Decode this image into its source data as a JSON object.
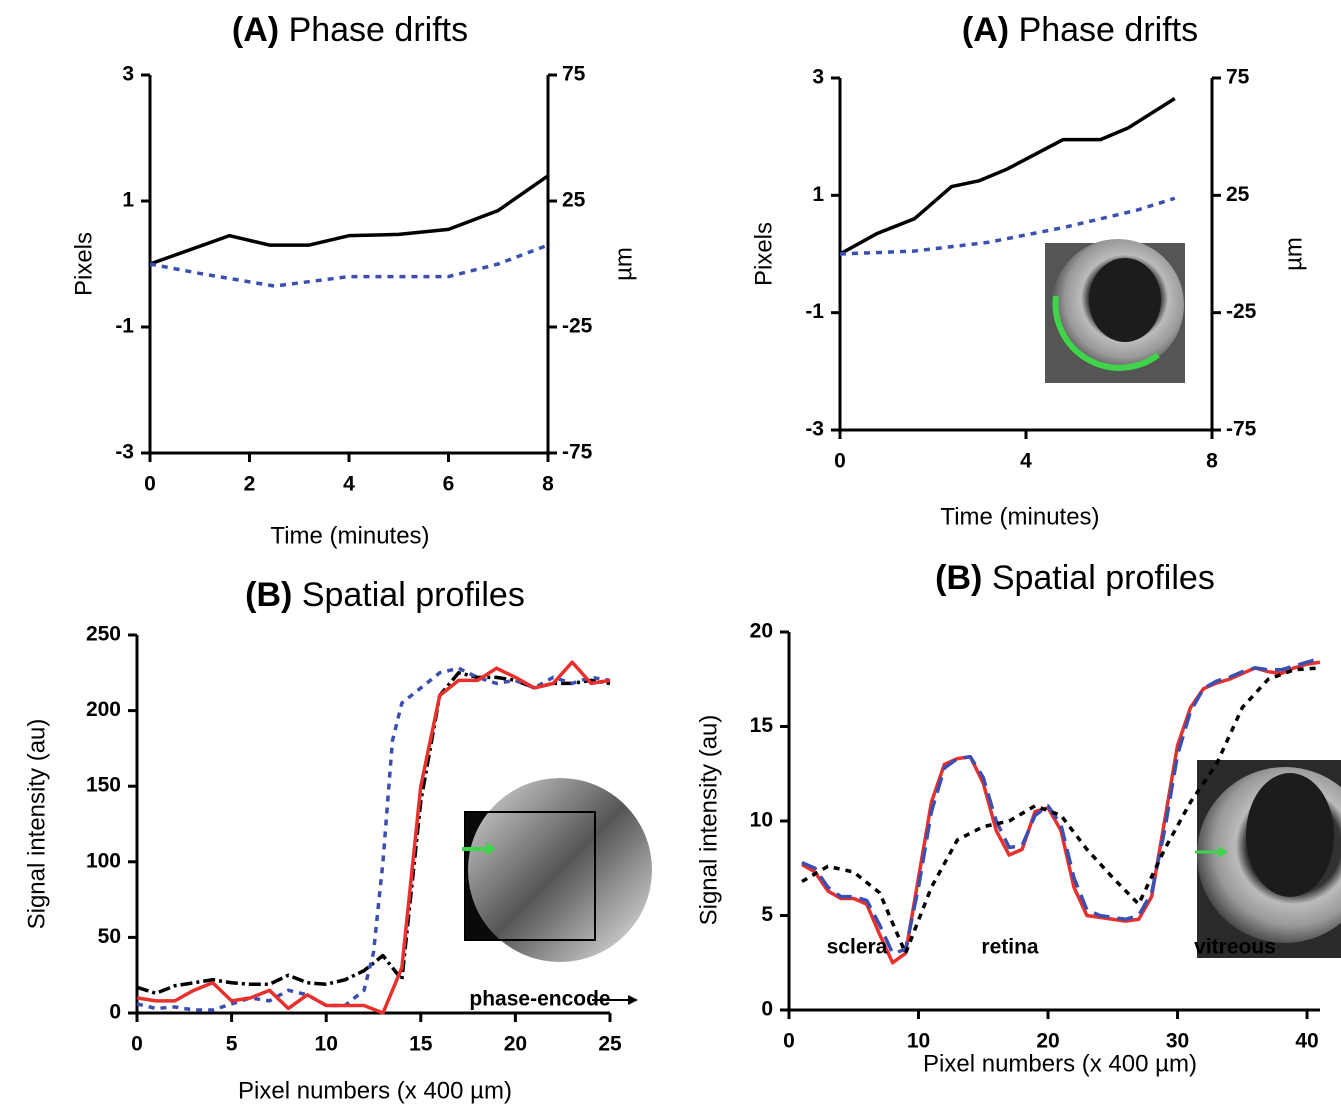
{
  "chart_data": [
    {
      "type": "line",
      "panel": "(A)",
      "title": "Phase drifts",
      "x_label": "Time (minutes)",
      "y_label": "Pixels",
      "y2_label": "µm",
      "xlim": [
        0,
        8
      ],
      "xticks": [
        0,
        2,
        4,
        6,
        8
      ],
      "ylim": [
        -3,
        3
      ],
      "yticks": [
        -3,
        -1,
        1,
        3
      ],
      "y2lim": [
        -75,
        75
      ],
      "y2ticks": [
        -75,
        -25,
        25,
        75
      ],
      "series": [
        {
          "color": "#000000",
          "style": "solid",
          "x": [
            0,
            1.6,
            2.4,
            3.2,
            4,
            5,
            6,
            7,
            8
          ],
          "values": [
            0,
            0.45,
            0.3,
            0.3,
            0.45,
            0.47,
            0.55,
            0.85,
            1.4
          ]
        },
        {
          "color": "#3a4fb0",
          "style": "dotted",
          "x": [
            0,
            1,
            2.5,
            4,
            6,
            7,
            8
          ],
          "values": [
            0,
            -0.15,
            -0.35,
            -0.2,
            -0.2,
            0,
            0.3
          ]
        }
      ]
    },
    {
      "type": "line",
      "panel": "(A)",
      "title": "Phase drifts",
      "x_label": "Time (minutes)",
      "y_label": "Pixels",
      "y2_label": "µm",
      "xlim": [
        0,
        8
      ],
      "xticks": [
        0,
        4,
        8
      ],
      "ylim": [
        -3,
        3
      ],
      "yticks": [
        -3,
        -1,
        1,
        3
      ],
      "y2lim": [
        -75,
        75
      ],
      "y2ticks": [
        -75,
        -25,
        25,
        75
      ],
      "series": [
        {
          "color": "#000000",
          "style": "solid",
          "x": [
            0,
            0.8,
            1.6,
            2.4,
            3,
            3.6,
            4.8,
            5.6,
            6.2,
            7.2
          ],
          "values": [
            0,
            0.35,
            0.6,
            1.15,
            1.25,
            1.45,
            1.95,
            1.95,
            2.15,
            2.65
          ]
        },
        {
          "color": "#3a4fb0",
          "style": "dotted",
          "x": [
            0,
            1.6,
            3.2,
            4.8,
            6.4,
            7.2
          ],
          "values": [
            0,
            0.05,
            0.2,
            0.45,
            0.75,
            0.95
          ]
        }
      ]
    },
    {
      "type": "line",
      "panel": "(B)",
      "title": "Spatial profiles",
      "x_label": "Pixel numbers (x 400 µm)",
      "y_label": "Signal intensity (au)",
      "xlim": [
        0,
        25
      ],
      "xticks": [
        0,
        5,
        10,
        15,
        20,
        25
      ],
      "ylim": [
        0,
        250
      ],
      "yticks": [
        0,
        50,
        100,
        150,
        200,
        250
      ],
      "annotations": [
        "phase-encode"
      ],
      "series": [
        {
          "color": "#000000",
          "style": "dashdot",
          "x": [
            0,
            1,
            2,
            3,
            4,
            5,
            6,
            7,
            8,
            9,
            10,
            11,
            12,
            13,
            14,
            15,
            16,
            17,
            18,
            19,
            20,
            21,
            22,
            23,
            24,
            25
          ],
          "values": [
            17,
            13,
            18,
            20,
            22,
            20,
            19,
            19,
            25,
            20,
            19,
            22,
            28,
            38,
            22,
            140,
            210,
            225,
            222,
            222,
            220,
            215,
            218,
            218,
            220,
            218
          ]
        },
        {
          "color": "#3a4fb0",
          "style": "dotted",
          "x": [
            0,
            1,
            2,
            3,
            4,
            5,
            6,
            7,
            8,
            9,
            10,
            11,
            12,
            12.5,
            13,
            13.5,
            14,
            15,
            16,
            17,
            18,
            19,
            20,
            21,
            22,
            23,
            24,
            25
          ],
          "values": [
            6,
            3,
            4,
            2,
            2,
            6,
            10,
            8,
            15,
            12,
            5,
            5,
            15,
            40,
            100,
            180,
            205,
            215,
            225,
            228,
            222,
            218,
            220,
            215,
            222,
            218,
            222,
            220
          ]
        },
        {
          "color": "#e8302c",
          "style": "solid",
          "x": [
            0,
            1,
            2,
            3,
            4,
            5,
            6,
            7,
            8,
            9,
            10,
            11,
            12,
            13,
            14,
            15,
            16,
            17,
            18,
            19,
            20,
            21,
            22,
            23,
            24,
            25
          ],
          "values": [
            10,
            8,
            8,
            15,
            20,
            8,
            10,
            15,
            3,
            12,
            5,
            5,
            5,
            0,
            30,
            150,
            210,
            220,
            220,
            228,
            222,
            215,
            218,
            232,
            218,
            220
          ]
        }
      ]
    },
    {
      "type": "line",
      "panel": "(B)",
      "title": "Spatial profiles",
      "x_label": "Pixel numbers (x 400 µm)",
      "y_label": "Signal intensity (au)",
      "xlim": [
        0,
        41
      ],
      "xticks": [
        0,
        10,
        20,
        30,
        40
      ],
      "ylim": [
        0,
        20
      ],
      "yticks": [
        0,
        5,
        10,
        15,
        20
      ],
      "annotations": [
        "sclera",
        "retina",
        "vitreous"
      ],
      "series": [
        {
          "color": "#e8302c",
          "style": "solid",
          "x": [
            1,
            2,
            3,
            4,
            5,
            6,
            7,
            8,
            9,
            10,
            11,
            12,
            13,
            14,
            15,
            16,
            17,
            18,
            19,
            20,
            21,
            22,
            23,
            24,
            25,
            26,
            27,
            28,
            29,
            30,
            31,
            32,
            33,
            34,
            35,
            36,
            37,
            38,
            39,
            40,
            41
          ],
          "values": [
            7.7,
            7.3,
            6.3,
            5.9,
            5.9,
            5.6,
            4,
            2.5,
            3,
            7,
            11,
            13,
            13.3,
            13.4,
            12,
            9.5,
            8.2,
            8.5,
            10.5,
            10.7,
            9.5,
            6.5,
            5,
            4.9,
            4.8,
            4.7,
            4.8,
            6,
            10,
            14,
            16,
            17,
            17.3,
            17.5,
            17.8,
            18.1,
            17.9,
            17.8,
            18.1,
            18.3,
            18.4
          ]
        },
        {
          "color": "#3a4fb0",
          "style": "dashed",
          "x": [
            1,
            2,
            3,
            4,
            5,
            6,
            7,
            8,
            9,
            10,
            11,
            12,
            13,
            14,
            15,
            16,
            17,
            18,
            19,
            20,
            21,
            22,
            23,
            24,
            25,
            26,
            27,
            28,
            29,
            30,
            31,
            32,
            33,
            34,
            35,
            36,
            37,
            38,
            39,
            40,
            41
          ],
          "values": [
            7.8,
            7.5,
            6.5,
            6,
            6,
            5.8,
            4.5,
            3,
            3.2,
            6.5,
            10.5,
            12.8,
            13.3,
            13.4,
            12.3,
            10,
            8.6,
            8.7,
            10.3,
            10.8,
            9.8,
            7,
            5.3,
            5,
            4.9,
            4.8,
            5,
            6.2,
            9.5,
            13.5,
            15.8,
            17,
            17.4,
            17.6,
            17.9,
            18.1,
            18,
            18,
            18.2,
            18.4,
            18.6
          ]
        },
        {
          "color": "#000000",
          "style": "dotted",
          "x": [
            1,
            3,
            5,
            7,
            9,
            11,
            13,
            15,
            17,
            19,
            21,
            23,
            25,
            27,
            29,
            31,
            33,
            35,
            37,
            39,
            41
          ],
          "values": [
            6.8,
            7.6,
            7.3,
            6.2,
            3,
            6.5,
            9,
            9.7,
            10,
            10.8,
            10.3,
            8.5,
            7,
            5.6,
            8.5,
            11,
            13,
            16,
            17.5,
            18,
            18.1
          ]
        }
      ]
    }
  ]
}
